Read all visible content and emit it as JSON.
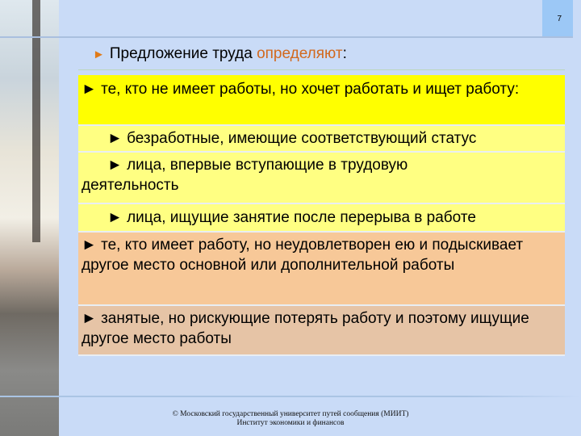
{
  "slide": {
    "page_number": "7",
    "title_prefix": "► ",
    "title_main": "Предложение труда ",
    "title_accent": "определяют",
    "title_suffix": ":",
    "accent_color": "#d2691e"
  },
  "items": [
    {
      "text": "► те, кто не имеет работы, но хочет работать и ищет работу:",
      "color": "#ffff00"
    },
    {
      "text": "► безработные, имеющие соответствующий статус",
      "color": "#ffff82"
    },
    {
      "text": "► лица, впервые вступающие в трудовую",
      "cont": "деятельность",
      "color": "#ffff82"
    },
    {
      "text": "► лица, ищущие занятие после перерыва в работе",
      "color": "#ffff82"
    },
    {
      "text": "► те, кто имеет работу, но неудовлетворен ею и подыскивает другое место основной или дополнительной работы",
      "color": "#f7c898"
    },
    {
      "text": "► занятые, но рискующие потерять работу и поэтому ищущие другое место работы",
      "color": "#e6c4a6"
    }
  ],
  "footer": {
    "line1": "© Московский государственный университет путей сообщения (МИИТ)",
    "line2": "Институт экономики и финансов"
  }
}
